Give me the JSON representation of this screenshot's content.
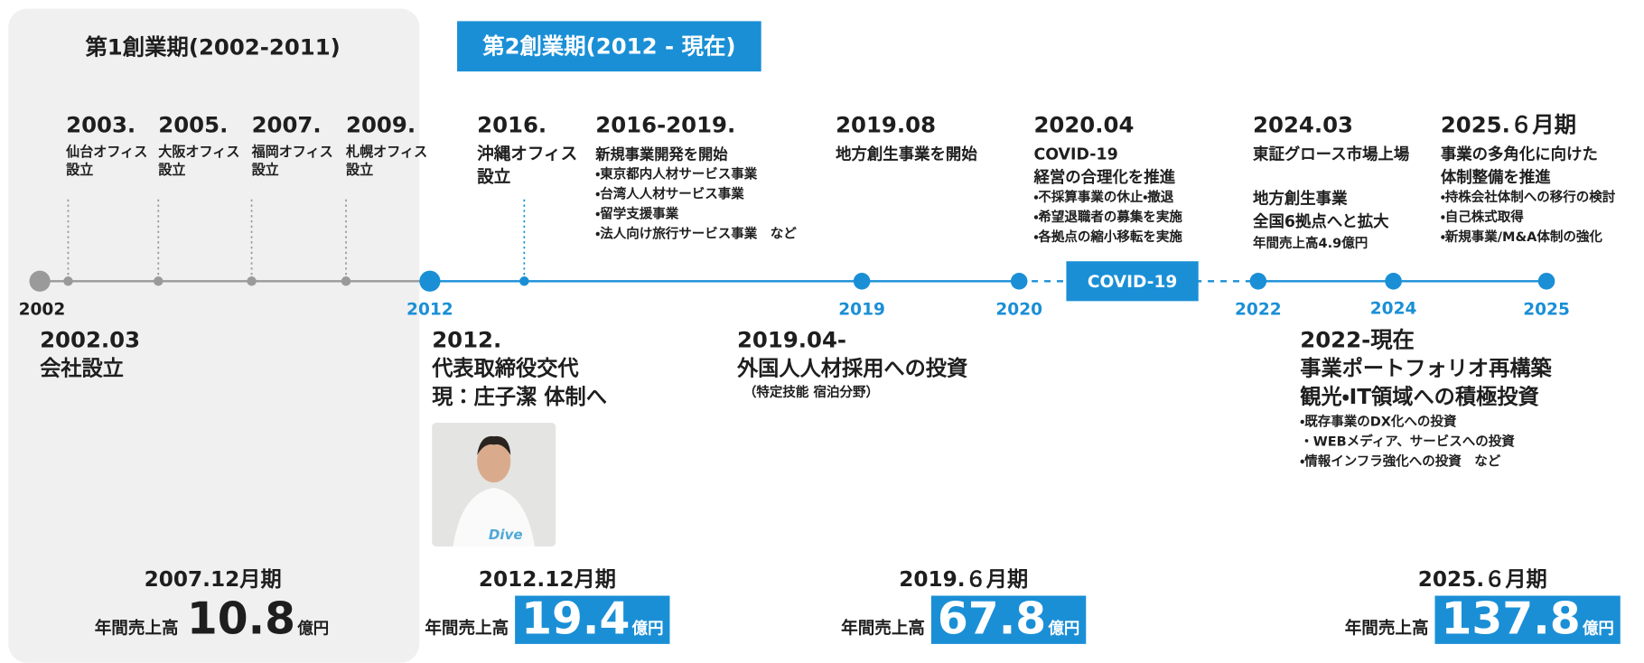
{
  "eras": [
    {
      "label": "第1創業期(2002-2011)"
    },
    {
      "label": "第2創業期(2012 - 現在)"
    }
  ],
  "axis": {
    "years": [
      "2002",
      "2012",
      "2019",
      "2020",
      "2022",
      "2024",
      "2025"
    ],
    "covid_label": "COVID-19"
  },
  "top_events": [
    {
      "title": "2003.",
      "lines": [
        "仙台オフィス",
        "設立"
      ]
    },
    {
      "title": "2005.",
      "lines": [
        "大阪オフィス",
        "設立"
      ]
    },
    {
      "title": "2007.",
      "lines": [
        "福岡オフィス",
        "設立"
      ]
    },
    {
      "title": "2009.",
      "lines": [
        "札幌オフィス",
        "設立"
      ]
    },
    {
      "title": "2016.",
      "lines": [
        "沖縄オフィス",
        "設立"
      ]
    },
    {
      "title": "2016-2019.",
      "lines": [
        "新規事業開発を開始"
      ],
      "bullets": [
        "・東京都内人材サービス事業",
        "・台湾人人材サービス事業",
        "・留学支援事業",
        "・法人向け旅行サービス事業　など"
      ]
    },
    {
      "title": "2019.08",
      "lines": [
        "地方創生事業を開始"
      ]
    },
    {
      "title": "2020.04",
      "lines": [
        "COVID-19",
        "経営の合理化を推進"
      ],
      "bullets": [
        "・不採算事業の休止・撤退",
        "・希望退職者の募集を実施",
        "・各拠点の縮小移転を実施"
      ]
    },
    {
      "title": "2024.03",
      "lines": [
        "東証グロース市場上場"
      ],
      "sub_lines": [
        "地方創生事業",
        "全国6拠点へと拡大"
      ],
      "note": "年間売上高4.9億円"
    },
    {
      "title": "2025.６月期",
      "lines": [
        "事業の多角化に向けた",
        "体制整備を推進"
      ],
      "bullets": [
        "・持株会社体制への移行の検討",
        "・自己株式取得",
        "・新規事業/M&A体制の強化"
      ]
    }
  ],
  "bottom_events": [
    {
      "title": "2002.03",
      "lines": [
        "会社設立"
      ]
    },
    {
      "title": "2012.",
      "lines": [
        "代表取締役交代",
        "現：庄子潔 体制へ"
      ]
    },
    {
      "title": "2019.04-",
      "lines": [
        "外国人人材採用への投資"
      ],
      "note": "（特定技能 宿泊分野）"
    },
    {
      "title": "2022-現在",
      "lines": [
        "事業ポートフォリオ再構築",
        "観光・IT領域への積極投資"
      ],
      "bullets": [
        "・既存事業のDX化への投資",
        "・WEBメディア、サービスへの投資",
        "・情報インフラ強化への投資　など"
      ]
    }
  ],
  "revenue": [
    {
      "period": "2007.12月期",
      "label": "年間売上高",
      "amount": "10.8",
      "unit": "億円",
      "highlight": false
    },
    {
      "period": "2012.12月期",
      "label": "年間売上高",
      "amount": "19.4",
      "unit": "億円",
      "highlight": true
    },
    {
      "period": "2019.６月期",
      "label": "年間売上高",
      "amount": "67.8",
      "unit": "億円",
      "highlight": true
    },
    {
      "period": "2025.６月期",
      "label": "年間売上高",
      "amount": "137.8",
      "unit": "億円",
      "highlight": true
    }
  ]
}
